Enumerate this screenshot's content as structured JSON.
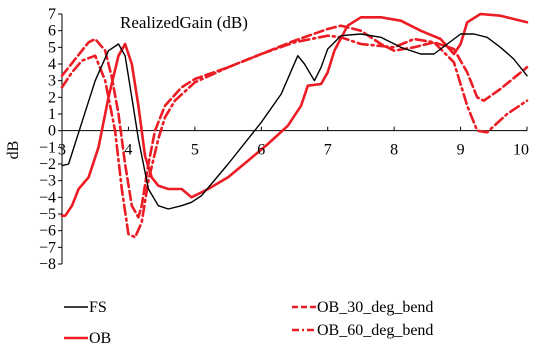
{
  "chart_data": {
    "type": "line",
    "title": "RealizedGain (dB)",
    "xlabel": "",
    "ylabel": "dB",
    "xlim": [
      3,
      10
    ],
    "ylim": [
      -8,
      7
    ],
    "x_ticks": [
      "3",
      "4",
      "5",
      "6",
      "7",
      "8",
      "9",
      "10"
    ],
    "y_ticks": [
      "7",
      "6",
      "5",
      "4",
      "3",
      "2",
      "1",
      "0",
      "−1",
      "−2",
      "−3",
      "−4",
      "−5",
      "−6",
      "−7",
      "−8"
    ],
    "grid": false,
    "legend_position": "bottom",
    "series": [
      {
        "name": "FS",
        "color": "#000000",
        "dash": "solid",
        "width": "thin",
        "points": [
          [
            3.0,
            -2.1
          ],
          [
            3.1,
            -2.0
          ],
          [
            3.3,
            0.5
          ],
          [
            3.5,
            3.0
          ],
          [
            3.7,
            4.8
          ],
          [
            3.85,
            5.2
          ],
          [
            3.95,
            4.5
          ],
          [
            4.05,
            2.0
          ],
          [
            4.15,
            -0.5
          ],
          [
            4.3,
            -3.5
          ],
          [
            4.45,
            -4.5
          ],
          [
            4.6,
            -4.7
          ],
          [
            4.8,
            -4.5
          ],
          [
            4.95,
            -4.3
          ],
          [
            5.1,
            -3.9
          ],
          [
            5.5,
            -2.0
          ],
          [
            6.0,
            0.5
          ],
          [
            6.3,
            2.2
          ],
          [
            6.55,
            4.5
          ],
          [
            6.65,
            4.0
          ],
          [
            6.8,
            3.0
          ],
          [
            6.9,
            3.8
          ],
          [
            7.0,
            4.9
          ],
          [
            7.2,
            5.7
          ],
          [
            7.5,
            5.8
          ],
          [
            7.8,
            5.6
          ],
          [
            8.1,
            5.0
          ],
          [
            8.4,
            4.6
          ],
          [
            8.6,
            4.6
          ],
          [
            8.8,
            5.2
          ],
          [
            9.0,
            5.8
          ],
          [
            9.2,
            5.8
          ],
          [
            9.4,
            5.6
          ],
          [
            9.6,
            5.0
          ],
          [
            9.8,
            4.3
          ],
          [
            10.0,
            3.3
          ]
        ]
      },
      {
        "name": "OB",
        "color": "#ec1c24",
        "dash": "solid",
        "width": "thick",
        "points": [
          [
            3.0,
            -5.1
          ],
          [
            3.05,
            -5.1
          ],
          [
            3.15,
            -4.5
          ],
          [
            3.25,
            -3.5
          ],
          [
            3.4,
            -2.8
          ],
          [
            3.55,
            -1.0
          ],
          [
            3.7,
            2.0
          ],
          [
            3.85,
            4.5
          ],
          [
            3.95,
            5.2
          ],
          [
            4.05,
            4.0
          ],
          [
            4.15,
            1.5
          ],
          [
            4.25,
            -1.5
          ],
          [
            4.35,
            -2.8
          ],
          [
            4.45,
            -3.3
          ],
          [
            4.6,
            -3.5
          ],
          [
            4.8,
            -3.5
          ],
          [
            4.95,
            -4.0
          ],
          [
            5.2,
            -3.5
          ],
          [
            5.5,
            -2.8
          ],
          [
            5.8,
            -1.8
          ],
          [
            6.1,
            -0.8
          ],
          [
            6.4,
            0.3
          ],
          [
            6.6,
            1.5
          ],
          [
            6.7,
            2.7
          ],
          [
            6.9,
            2.8
          ],
          [
            7.0,
            3.5
          ],
          [
            7.1,
            4.8
          ],
          [
            7.3,
            6.3
          ],
          [
            7.5,
            6.8
          ],
          [
            7.8,
            6.8
          ],
          [
            8.1,
            6.6
          ],
          [
            8.4,
            6.0
          ],
          [
            8.7,
            5.5
          ],
          [
            8.9,
            4.6
          ],
          [
            9.0,
            5.2
          ],
          [
            9.1,
            6.5
          ],
          [
            9.3,
            7.0
          ],
          [
            9.6,
            6.9
          ],
          [
            9.8,
            6.7
          ],
          [
            10.0,
            6.5
          ]
        ]
      },
      {
        "name": "OB_30_deg_bend",
        "color": "#ec1c24",
        "dash": "dashed",
        "width": "thick",
        "points": [
          [
            3.0,
            3.3
          ],
          [
            3.2,
            4.3
          ],
          [
            3.4,
            5.3
          ],
          [
            3.5,
            5.5
          ],
          [
            3.65,
            4.8
          ],
          [
            3.75,
            3.2
          ],
          [
            3.85,
            1.0
          ],
          [
            3.95,
            -2.0
          ],
          [
            4.05,
            -4.5
          ],
          [
            4.15,
            -5.2
          ],
          [
            4.2,
            -4.5
          ],
          [
            4.3,
            -2.0
          ],
          [
            4.4,
            0.0
          ],
          [
            4.55,
            1.5
          ],
          [
            4.8,
            2.6
          ],
          [
            5.0,
            3.1
          ],
          [
            5.5,
            3.8
          ],
          [
            6.0,
            4.6
          ],
          [
            6.5,
            5.4
          ],
          [
            7.0,
            6.1
          ],
          [
            7.2,
            6.3
          ],
          [
            7.5,
            6.0
          ],
          [
            7.8,
            5.2
          ],
          [
            8.0,
            4.8
          ],
          [
            8.3,
            5.0
          ],
          [
            8.6,
            5.3
          ],
          [
            8.9,
            4.9
          ],
          [
            9.1,
            3.5
          ],
          [
            9.25,
            2.0
          ],
          [
            9.35,
            1.8
          ],
          [
            9.6,
            2.5
          ],
          [
            10.0,
            3.8
          ]
        ]
      },
      {
        "name": "OB_60_deg_bend",
        "color": "#ec1c24",
        "dash": "dash-dot",
        "width": "thick",
        "points": [
          [
            3.0,
            2.6
          ],
          [
            3.15,
            3.5
          ],
          [
            3.3,
            4.2
          ],
          [
            3.5,
            4.5
          ],
          [
            3.65,
            3.0
          ],
          [
            3.8,
            0.0
          ],
          [
            3.9,
            -3.5
          ],
          [
            4.0,
            -6.2
          ],
          [
            4.1,
            -6.4
          ],
          [
            4.2,
            -5.5
          ],
          [
            4.3,
            -3.0
          ],
          [
            4.45,
            -0.5
          ],
          [
            4.55,
            0.8
          ],
          [
            4.7,
            1.8
          ],
          [
            5.0,
            2.9
          ],
          [
            5.5,
            3.8
          ],
          [
            6.0,
            4.6
          ],
          [
            6.5,
            5.3
          ],
          [
            7.0,
            5.7
          ],
          [
            7.2,
            5.6
          ],
          [
            7.5,
            5.2
          ],
          [
            8.0,
            5.0
          ],
          [
            8.3,
            5.5
          ],
          [
            8.6,
            5.3
          ],
          [
            8.9,
            4.1
          ],
          [
            9.1,
            1.5
          ],
          [
            9.25,
            0.0
          ],
          [
            9.4,
            -0.1
          ],
          [
            9.7,
            1.0
          ],
          [
            10.0,
            1.8
          ]
        ]
      }
    ]
  }
}
